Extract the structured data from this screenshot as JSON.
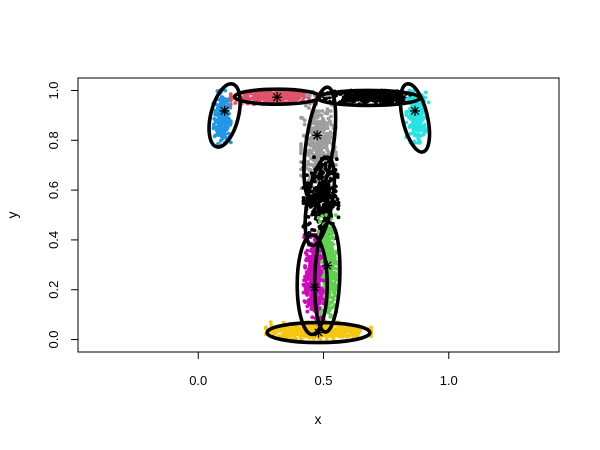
{
  "chart_data": {
    "type": "scatter",
    "xlabel": "x",
    "ylabel": "y",
    "xlim": [
      -0.48,
      1.44
    ],
    "ylim": [
      -0.05,
      1.05
    ],
    "x_ticks": [
      {
        "value": 0.0,
        "label": "0.0"
      },
      {
        "value": 0.5,
        "label": "0.5"
      },
      {
        "value": 1.0,
        "label": "1.0"
      }
    ],
    "y_ticks": [
      {
        "value": 0.0,
        "label": "0.0"
      },
      {
        "value": 0.2,
        "label": "0.2"
      },
      {
        "value": 0.4,
        "label": "0.4"
      },
      {
        "value": 0.6,
        "label": "0.6"
      },
      {
        "value": 0.8,
        "label": "0.8"
      },
      {
        "value": 1.0,
        "label": "1.0"
      }
    ],
    "grid": false,
    "legend": "none",
    "point_color_default": "#000000",
    "ellipse_color": "#000000",
    "clusters": [
      {
        "color": "#2297E6",
        "center": [
          0.105,
          0.918
        ],
        "x_range": [
          0.06,
          0.13
        ],
        "y_range": [
          0.78,
          1.0
        ],
        "ellipse": {
          "cx": 0.105,
          "cy": 0.9,
          "rx": 0.13,
          "ry": 0.055,
          "angle_deg": 76
        }
      },
      {
        "color": "#DF536B",
        "center": [
          0.315,
          0.973
        ],
        "x_range": [
          0.13,
          0.47
        ],
        "y_range": [
          0.945,
          1.0
        ],
        "ellipse": {
          "cx": 0.315,
          "cy": 0.975,
          "rx": 0.17,
          "ry": 0.03,
          "angle_deg": 0
        }
      },
      {
        "color": "#000000",
        "center": [
          0.68,
          0.97
        ],
        "x_range": [
          0.5,
          0.86
        ],
        "y_range": [
          0.945,
          1.0
        ],
        "ellipse": {
          "cx": 0.68,
          "cy": 0.97,
          "rx": 0.205,
          "ry": 0.03,
          "angle_deg": 0
        }
      },
      {
        "color": "#28E2E5",
        "center": [
          0.865,
          0.918
        ],
        "x_range": [
          0.83,
          0.92
        ],
        "y_range": [
          0.79,
          1.0
        ],
        "ellipse": {
          "cx": 0.865,
          "cy": 0.89,
          "rx": 0.14,
          "ry": 0.05,
          "angle_deg": -77
        }
      },
      {
        "color": "#9E9E9E",
        "center": [
          0.475,
          0.82
        ],
        "x_range": [
          0.41,
          0.55
        ],
        "y_range": [
          0.56,
          0.98
        ],
        "ellipse": {
          "cx": 0.485,
          "cy": 0.785,
          "rx": 0.23,
          "ry": 0.055,
          "angle_deg": 82
        }
      },
      {
        "color": "#000000",
        "center": [
          0.49,
          0.57
        ],
        "x_range": [
          0.42,
          0.56
        ],
        "y_range": [
          0.4,
          0.74
        ],
        "ellipse": {
          "cx": 0.485,
          "cy": 0.555,
          "rx": 0.18,
          "ry": 0.05,
          "angle_deg": 80
        }
      },
      {
        "color": "#61D04F",
        "center": [
          0.515,
          0.297
        ],
        "x_range": [
          0.48,
          0.56
        ],
        "y_range": [
          0.06,
          0.5
        ],
        "ellipse": {
          "cx": 0.515,
          "cy": 0.25,
          "rx": 0.22,
          "ry": 0.05,
          "angle_deg": 88
        }
      },
      {
        "color": "#CD0BBC",
        "center": [
          0.465,
          0.21
        ],
        "x_range": [
          0.42,
          0.5
        ],
        "y_range": [
          0.04,
          0.42
        ],
        "ellipse": {
          "cx": 0.455,
          "cy": 0.22,
          "rx": 0.2,
          "ry": 0.06,
          "angle_deg": 90
        }
      },
      {
        "color": "#F5C710",
        "center": [
          0.48,
          0.028
        ],
        "x_range": [
          0.27,
          0.69
        ],
        "y_range": [
          0.0,
          0.07
        ],
        "ellipse": {
          "cx": 0.48,
          "cy": 0.028,
          "rx": 0.205,
          "ry": 0.04,
          "angle_deg": 0
        }
      }
    ]
  }
}
